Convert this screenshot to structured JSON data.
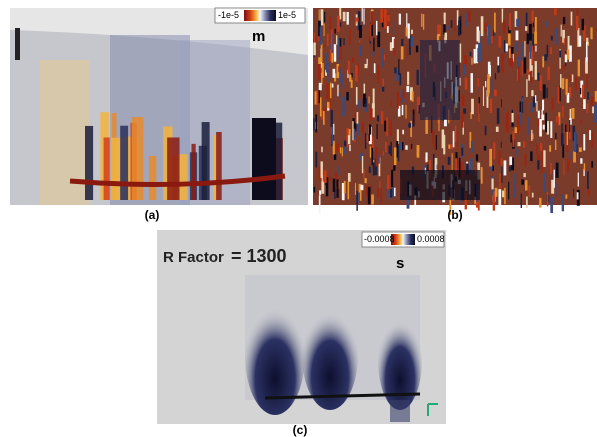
{
  "panels": [
    {
      "label": "(a)",
      "colorbar": {
        "min_label": "-1e-5",
        "max_label": "1e-5"
      },
      "unit": "m"
    },
    {
      "label": "(b)"
    },
    {
      "label": "(c)",
      "colorbar": {
        "min_label": "-0.0008",
        "max_label": "0.0008"
      },
      "unit": "s",
      "annotation": {
        "name": "R Factor",
        "value": "= 1300"
      }
    }
  ]
}
